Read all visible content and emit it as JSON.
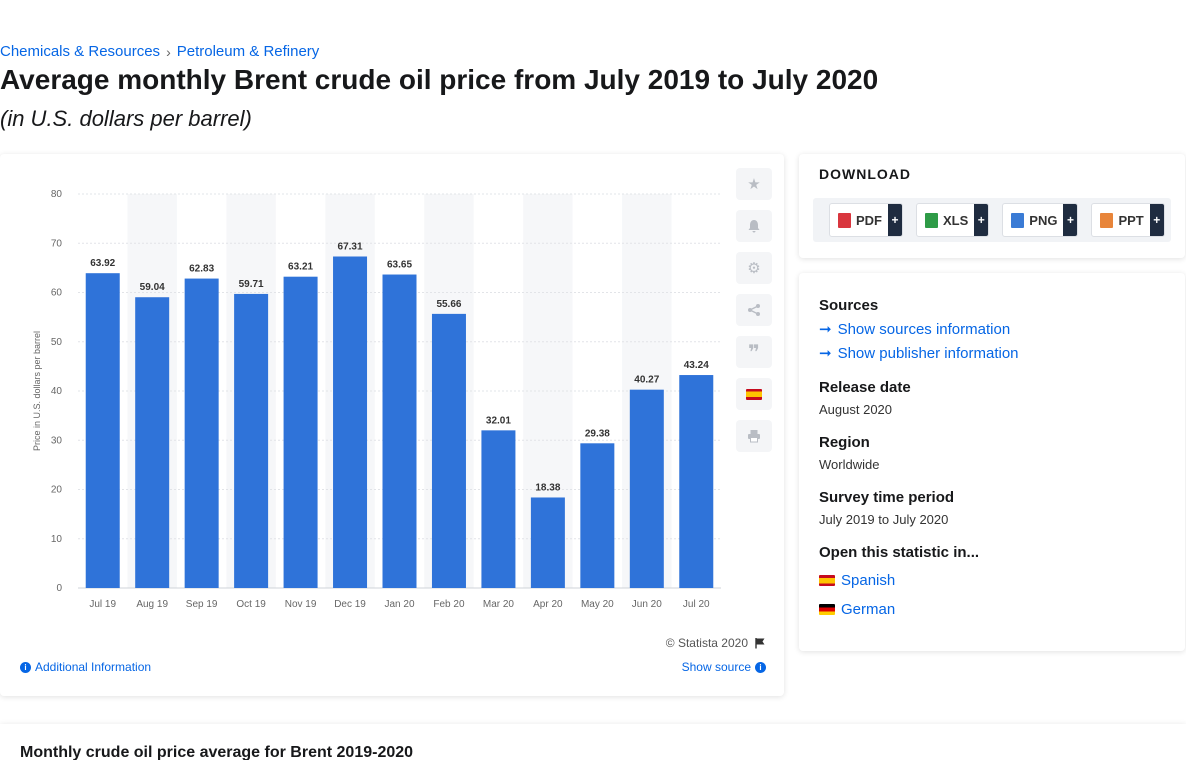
{
  "breadcrumb": {
    "item1": "Chemicals & Resources",
    "separator": "›",
    "item2": "Petroleum & Refinery"
  },
  "page": {
    "title": "Average monthly Brent crude oil price from July 2019 to July 2020",
    "subtitle": "(in U.S. dollars per barrel)"
  },
  "colors": {
    "bar": "#2f73d9",
    "link": "#0666e5",
    "band": "#f6f7f9",
    "grid": "#e2e4e8"
  },
  "chart_data": {
    "type": "bar",
    "categories": [
      "Jul 19",
      "Aug 19",
      "Sep 19",
      "Oct 19",
      "Nov 19",
      "Dec 19",
      "Jan 20",
      "Feb 20",
      "Mar 20",
      "Apr 20",
      "May 20",
      "Jun 20",
      "Jul 20"
    ],
    "values": [
      63.92,
      59.04,
      62.83,
      59.71,
      63.21,
      67.31,
      63.65,
      55.66,
      32.01,
      18.38,
      29.38,
      40.27,
      43.24
    ],
    "data_labels": [
      "63.92",
      "59.04",
      "62.83",
      "59.71",
      "63.21",
      "67.31",
      "63.65",
      "55.66",
      "32.01",
      "18.38",
      "29.38",
      "40.27",
      "43.24"
    ],
    "ylabel": "Price in U.S. dollars per barrel",
    "ylim": [
      0,
      80
    ],
    "yticks": [
      "0",
      "10",
      "20",
      "30",
      "40",
      "50",
      "60",
      "70",
      "80"
    ],
    "grid": true,
    "legend": "none"
  },
  "chart_footer": {
    "copyright": "© Statista 2020",
    "additional_info": "Additional Information",
    "show_source": "Show source"
  },
  "tool_icons": [
    "star-icon",
    "bell-icon",
    "gear-icon",
    "share-icon",
    "quote-icon",
    "flag-spain-icon",
    "print-icon"
  ],
  "download": {
    "title": "DOWNLOAD",
    "buttons": [
      {
        "label": "PDF",
        "color": "#d9363e"
      },
      {
        "label": "XLS",
        "color": "#2e9b47"
      },
      {
        "label": "PNG",
        "color": "#3a7bd5"
      },
      {
        "label": "PPT",
        "color": "#e8853a"
      }
    ],
    "plus": "+"
  },
  "info": {
    "sources_heading": "Sources",
    "show_sources": "Show sources information",
    "show_publisher": "Show publisher information",
    "release_heading": "Release date",
    "release_value": "August 2020",
    "region_heading": "Region",
    "region_value": "Worldwide",
    "survey_heading": "Survey time period",
    "survey_value": "July 2019 to July 2020",
    "open_heading": "Open this statistic in...",
    "lang_spanish": "Spanish",
    "lang_german": "German"
  },
  "bottom": {
    "title": "Monthly crude oil price average for Brent 2019-2020"
  }
}
